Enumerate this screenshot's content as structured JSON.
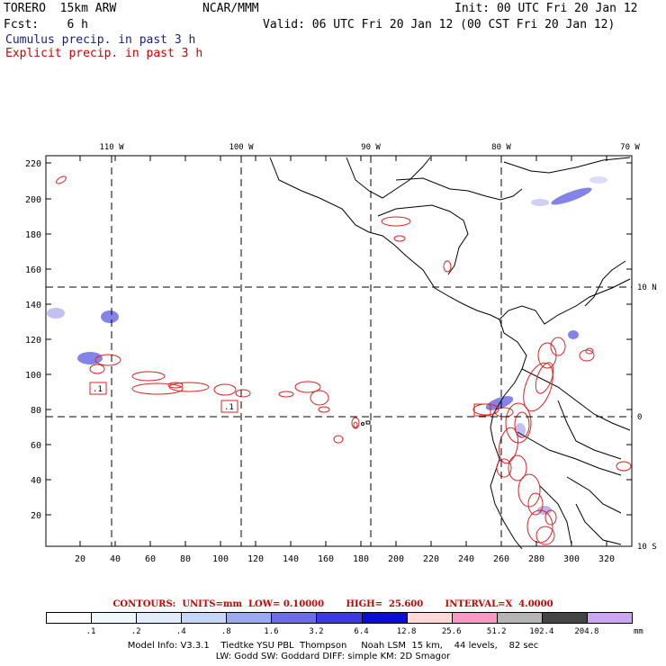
{
  "header": {
    "model": "TORERO  15km ARW",
    "org": "NCAR/MMM",
    "init": "Init: 00 UTC Fri 20 Jan 12",
    "fcst": "Fcst:    6 h",
    "valid": "Valid: 06 UTC Fri 20 Jan 12 (00 CST Fri 20 Jan 12)",
    "legend_cumulus": "Cumulus precip. in past 3 h",
    "legend_explicit": "Explicit precip. in past 3 h"
  },
  "map": {
    "top_lon_labels": [
      "110 W",
      "100 W",
      "90 W",
      "80 W",
      "70 W"
    ],
    "right_lat_labels": [
      "10 N",
      "0",
      "10 S"
    ],
    "left_y_ticks": [
      "220",
      "200",
      "180",
      "160",
      "140",
      "120",
      "100",
      "80",
      "60",
      "40",
      "20"
    ],
    "bottom_x_ticks": [
      "20",
      "40",
      "60",
      "80",
      "100",
      "120",
      "140",
      "160",
      "180",
      "200",
      "220",
      "240",
      "260",
      "280",
      "300",
      "320"
    ],
    "low_markers": [
      ".1",
      ".1"
    ],
    "colors": {
      "cumulus": "#4a4adf",
      "explicit": "#dd2222",
      "coast": "#000000"
    }
  },
  "contours_text": "CONTOURS:  UNITS=mm  LOW= 0.10000       HIGH=  25.600       INTERVAL=X  4.0000",
  "colorbar": {
    "labels": [
      ".1",
      ".2",
      ".4",
      ".8",
      "1.6",
      "3.2",
      "6.4",
      "12.8",
      "25.6",
      "51.2",
      "102.4",
      "204.8"
    ],
    "unit": "mm",
    "colors": [
      "#ffffff",
      "#f0f8ff",
      "#e2ecfb",
      "#c5d6f7",
      "#9aaaf0",
      "#6c6ce8",
      "#3a3adf",
      "#0b0bdc",
      "#ffd8d8",
      "#f799c4",
      "#b4b4b4",
      "#444444",
      "#cca6f4"
    ]
  },
  "model_info": {
    "line1": "Model Info: V3.3.1    Tiedtke YSU PBL  Thompson     Noah LSM  15 km,    44 levels,    82 sec",
    "line2": "LW: Godd SW: Goddard DIFF: simple KM: 2D Smagor"
  }
}
